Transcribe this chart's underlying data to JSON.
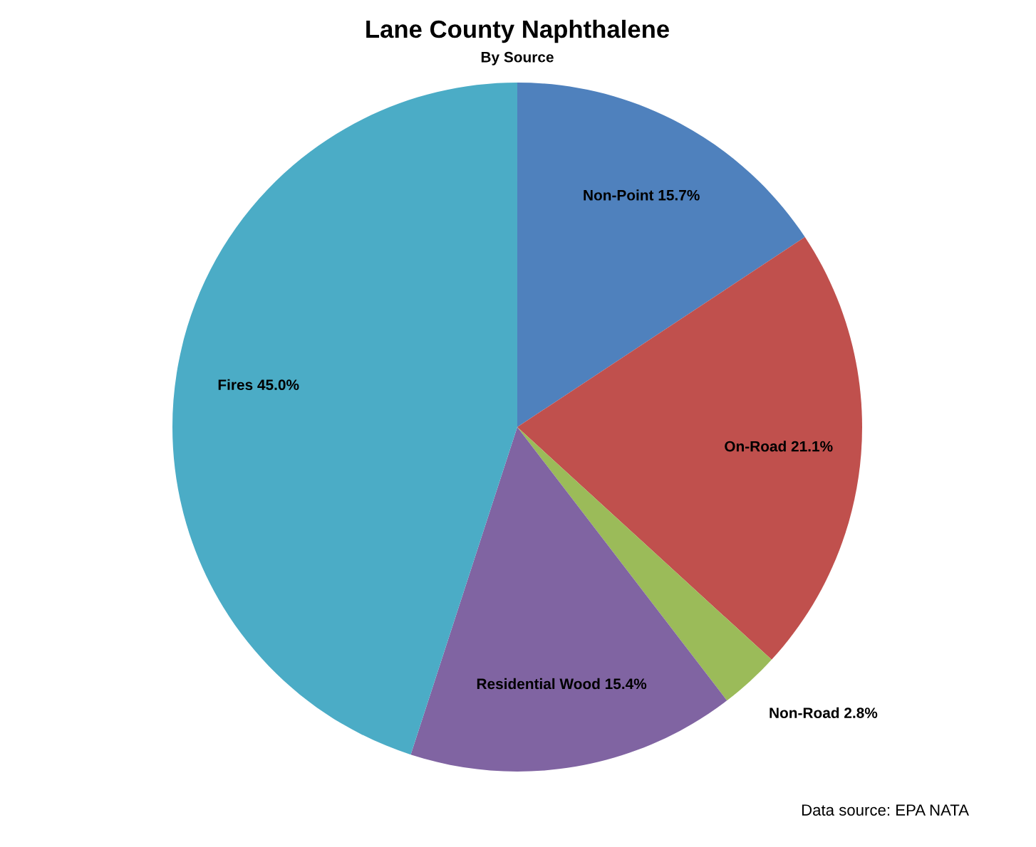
{
  "chart_data": {
    "type": "pie",
    "title": "Lane County Naphthalene",
    "subtitle": "By Source",
    "categories": [
      "Non-Point",
      "On-Road",
      "Non-Road",
      "Residential Wood",
      "Fires"
    ],
    "values": [
      15.7,
      21.1,
      2.8,
      15.4,
      45.0
    ],
    "colors": [
      "#4f81bd",
      "#c0504d",
      "#9bbb59",
      "#8064a2",
      "#4bacc6"
    ],
    "value_labels": [
      "15.7%",
      "21.1%",
      "2.8%",
      "15.4%",
      "45.0%"
    ],
    "annotations": [
      "Data source: EPA NATA"
    ]
  }
}
